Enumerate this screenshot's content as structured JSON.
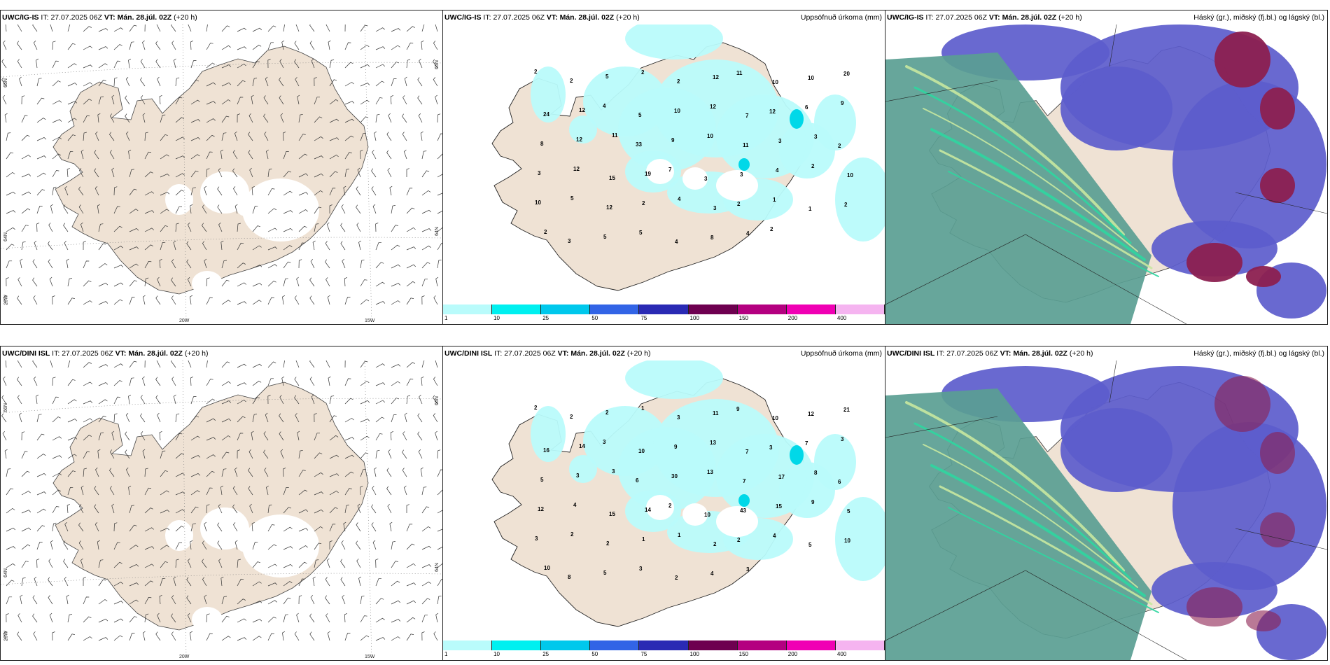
{
  "rows": [
    {
      "model": "UWC/IG-IS",
      "it_label": "IT:",
      "it_value": "27.07.2025 06Z",
      "vt_label": "VT:",
      "vt_value": "Mán. 28.júl. 02Z",
      "lead": "(+20 h)",
      "precip_numbers": [
        "2",
        "2",
        "5",
        "2",
        "2",
        "12",
        "11",
        "10",
        "10",
        "20",
        "24",
        "12",
        "4",
        "5",
        "10",
        "12",
        "7",
        "12",
        "6",
        "9",
        "8",
        "12",
        "11",
        "33",
        "9",
        "10",
        "11",
        "3",
        "3",
        "2",
        "3",
        "12",
        "15",
        "19",
        "7",
        "3",
        "3",
        "4",
        "2",
        "10",
        "10",
        "5",
        "12",
        "2",
        "4",
        "3",
        "2",
        "1",
        "1",
        "2",
        "2",
        "3",
        "5",
        "5",
        "4",
        "8",
        "4",
        "2"
      ],
      "axes": {
        "lat_left": "65N",
        "lat_right": "65N",
        "lat_left2": "64N",
        "lat_right2": "64N",
        "lon1": "20W",
        "lon2": "15W",
        "corner": "25W"
      }
    },
    {
      "model": "UWC/DINI ISL",
      "it_label": "IT:",
      "it_value": "27.07.2025 06Z",
      "vt_label": "VT:",
      "vt_value": "Mán. 28.júl. 02Z",
      "lead": "(+20 h)",
      "precip_numbers": [
        "2",
        "2",
        "2",
        "1",
        "3",
        "11",
        "9",
        "10",
        "12",
        "21",
        "16",
        "14",
        "3",
        "10",
        "9",
        "13",
        "7",
        "3",
        "7",
        "3",
        "5",
        "3",
        "3",
        "6",
        "30",
        "13",
        "7",
        "17",
        "8",
        "6",
        "12",
        "4",
        "15",
        "14",
        "2",
        "10",
        "43",
        "15",
        "9",
        "5",
        "3",
        "2",
        "2",
        "1",
        "1",
        "2",
        "2",
        "4",
        "5",
        "10",
        "10",
        "8",
        "5",
        "3",
        "2",
        "4",
        "3"
      ],
      "axes": {
        "lat_left": "66N",
        "lat_right": "66N",
        "lat_left2": "64N",
        "lat_right2": "64N",
        "lon1": "20W",
        "lon2": "15W",
        "corner": "25W"
      }
    }
  ],
  "precip_title": "Uppsöfnuð úrkoma (mm)",
  "cloud_title": "Háský (gr.), miðský (fj.bl.) og lágský (bl.)",
  "colorbar": {
    "labels": [
      "1",
      "10",
      "25",
      "50",
      "75",
      "100",
      "150",
      "200",
      "400"
    ],
    "colors": [
      "#b9fbfb",
      "#00f0f0",
      "#00c8ec",
      "#3264e6",
      "#2a2ab4",
      "#6e0050",
      "#b40080",
      "#f000b4",
      "#f5b4f0"
    ]
  },
  "colors": {
    "land": "#efe2d4",
    "ice": "#ffffff",
    "sea": "#ffffff",
    "precip_light": "#b9fbfb",
    "high_cloud": "#5a9e92",
    "mid_cloud": "#5c5ccc",
    "low_cloud": "#8c2050"
  }
}
